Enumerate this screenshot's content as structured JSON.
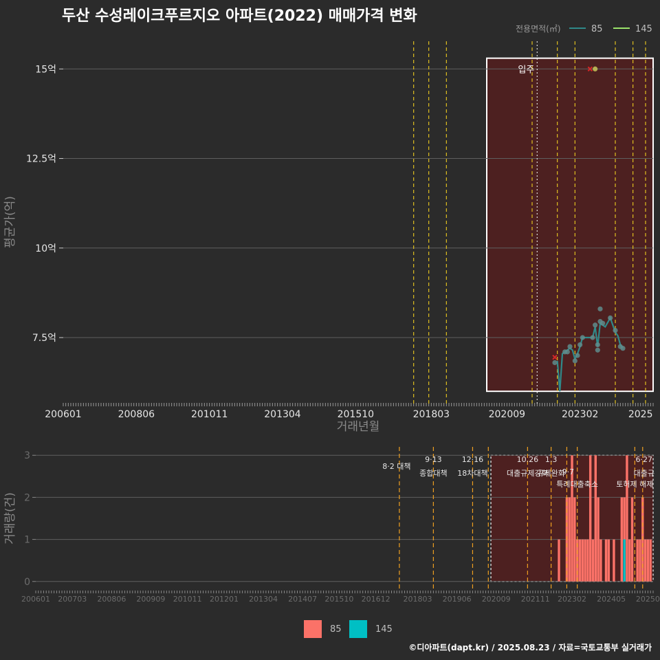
{
  "title": "두산 수성레이크푸르지오 아파트(2022) 매매가격 변화",
  "caption": "©디아파트(dapt.kr) / 2025.08.23 / 자료=국토교통부 실거래가",
  "legend_top": {
    "title": "전용면적(㎡)",
    "items": [
      "85",
      "145"
    ]
  },
  "legend_bottom": {
    "items": [
      "85",
      "145"
    ]
  },
  "colors": {
    "bg": "#2b2b2b",
    "grid": "#5f5f5f",
    "line85": "#2f8a8a",
    "line145": "#9be36a",
    "bar85": "#fb7268",
    "bar145": "#00bfc4",
    "policy_top": "#e0c020",
    "policy_bottom": "#f0a020",
    "box_fill": "#5a1e1e",
    "marker": "#d62828",
    "point145": "#c8c85a"
  },
  "chart_data": [
    {
      "type": "line",
      "title": "두산 수성레이크푸르지오 아파트(2022) 매매가격 변화",
      "xlabel": "거래년월",
      "ylabel": "평균가(억)",
      "x_ticks": [
        "200601",
        "200806",
        "201011",
        "201304",
        "201510",
        "201803",
        "202009",
        "202302",
        "2025"
      ],
      "x_tick_index": [
        0,
        29,
        58,
        87,
        116,
        146,
        176,
        205,
        229
      ],
      "x_range_index": [
        0,
        234
      ],
      "y_ticks": [
        7.5,
        10,
        12.5,
        15
      ],
      "y_tick_labels": [
        "7.5억",
        "10억",
        "12.5억",
        "15억"
      ],
      "ylim": [
        5.6,
        15.85
      ],
      "annotation": "입주",
      "annotation_index": 182,
      "policy_lines_index": [
        139,
        145,
        152,
        186,
        196,
        203,
        219,
        226,
        231
      ],
      "movein_line_index": 188,
      "highlight_box_index": [
        168,
        234
      ],
      "highlight_box_y": [
        6.0,
        15.3
      ],
      "series": [
        {
          "name": "85",
          "points": [
            [
              196,
              6.85
            ],
            [
              197,
              6.0
            ],
            [
              198,
              7.05
            ],
            [
              199,
              7.1
            ],
            [
              200,
              7.15
            ],
            [
              201,
              7.2
            ],
            [
              202,
              7.15
            ],
            [
              203,
              6.9
            ],
            [
              204,
              7.05
            ],
            [
              205,
              7.25
            ],
            [
              206,
              7.5
            ],
            [
              210,
              7.5
            ],
            [
              211,
              7.8
            ],
            [
              212,
              7.25
            ],
            [
              213,
              7.9
            ],
            [
              214,
              7.85
            ],
            [
              215,
              7.8
            ],
            [
              217,
              8.05
            ],
            [
              219,
              7.65
            ],
            [
              220,
              7.55
            ],
            [
              221,
              7.3
            ],
            [
              222,
              7.2
            ]
          ],
          "scatter": [
            [
              195,
              6.8
            ],
            [
              199,
              7.1
            ],
            [
              200,
              7.1
            ],
            [
              201,
              7.25
            ],
            [
              203,
              6.85
            ],
            [
              204,
              7.0
            ],
            [
              205,
              7.3
            ],
            [
              206,
              7.5
            ],
            [
              210,
              7.5
            ],
            [
              211,
              7.85
            ],
            [
              212,
              7.3
            ],
            [
              212,
              7.15
            ],
            [
              213,
              7.95
            ],
            [
              213,
              8.3
            ],
            [
              214,
              7.9
            ],
            [
              217,
              8.05
            ],
            [
              219,
              7.7
            ],
            [
              221,
              7.25
            ],
            [
              222,
              7.2
            ]
          ]
        },
        {
          "name": "145",
          "points": [
            [
              211,
              15.0
            ]
          ],
          "scatter": [
            [
              211,
              15.0
            ]
          ]
        }
      ],
      "cancel_markers": [
        [
          195,
          6.95
        ],
        [
          209,
          15.0
        ]
      ]
    },
    {
      "type": "bar",
      "xlabel": "",
      "ylabel": "거래량(건)",
      "x_ticks": [
        "200601",
        "200703",
        "200806",
        "200909",
        "201011",
        "201201",
        "201304",
        "201407",
        "201510",
        "201612",
        "201803",
        "201906",
        "202009",
        "202111",
        "202302",
        "202405",
        "20250"
      ],
      "x_tick_index": [
        0,
        14,
        29,
        44,
        58,
        72,
        87,
        102,
        116,
        130,
        146,
        161,
        176,
        191,
        205,
        220,
        234
      ],
      "x_range_index": [
        0,
        236
      ],
      "y_ticks": [
        0,
        1,
        2,
        3
      ],
      "ylim": [
        -0.2,
        3.2
      ],
      "highlight_box_index": [
        174,
        236
      ],
      "policy_lines": [
        {
          "index": 139,
          "date": "",
          "text": "8·2 대책"
        },
        {
          "index": 152,
          "date": "9·13",
          "text": "종합대책"
        },
        {
          "index": 167,
          "date": "12·16",
          "text": "18차대책"
        },
        {
          "index": 173,
          "date": "",
          "text": ""
        },
        {
          "index": 188,
          "date": "10.26",
          "text": "대출규제강화"
        },
        {
          "index": 197,
          "date": "1.3",
          "text": "규제완화"
        },
        {
          "index": 203,
          "date": "",
          "text": "9·7"
        },
        {
          "index": 207,
          "date": "",
          "text": "특례대출축소"
        },
        {
          "index": 229,
          "date": "",
          "text": "토허제 해제"
        },
        {
          "index": 232,
          "date": "6·27",
          "text": "대출규"
        }
      ],
      "series": [
        {
          "name": "85",
          "bars": [
            [
              200,
              1
            ],
            [
              203,
              2
            ],
            [
              204,
              2
            ],
            [
              205,
              3
            ],
            [
              206,
              2
            ],
            [
              207,
              1
            ],
            [
              208,
              1
            ],
            [
              209,
              1
            ],
            [
              210,
              1
            ],
            [
              211,
              1
            ],
            [
              212,
              3
            ],
            [
              213,
              1
            ],
            [
              214,
              3
            ],
            [
              215,
              2
            ],
            [
              216,
              1
            ],
            [
              218,
              1
            ],
            [
              219,
              1
            ],
            [
              221,
              1
            ],
            [
              224,
              2
            ],
            [
              225,
              2
            ],
            [
              226,
              3
            ],
            [
              227,
              1
            ],
            [
              228,
              2
            ],
            [
              230,
              1
            ],
            [
              231,
              1
            ],
            [
              232,
              2
            ],
            [
              233,
              1
            ],
            [
              234,
              1
            ],
            [
              235,
              1
            ]
          ]
        },
        {
          "name": "145",
          "bars": [
            [
              225,
              1
            ]
          ]
        }
      ]
    }
  ]
}
